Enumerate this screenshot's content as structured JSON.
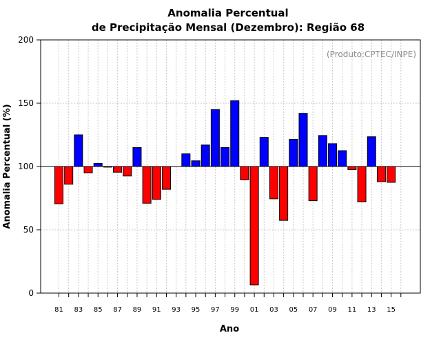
{
  "chart_data": {
    "type": "bar",
    "title_line1": "Anomalia Percentual",
    "title_line2": "de Precipitação Mensal (Dezembro): Região 68",
    "credit": "(Produto:CPTEC/INPE)",
    "xlabel": "Ano",
    "ylabel": "Anomalia Percentual (%)",
    "ylim": [
      0,
      200
    ],
    "yticks": [
      0,
      50,
      100,
      150,
      200
    ],
    "baseline": 100,
    "grid": true,
    "colors": {
      "above": "#0000ff",
      "below": "#ff0000"
    },
    "x_tick_labels": [
      "81",
      "83",
      "85",
      "87",
      "89",
      "91",
      "93",
      "95",
      "97",
      "99",
      "01",
      "03",
      "05",
      "07",
      "09",
      "11",
      "13",
      "15"
    ],
    "categories": [
      "1981",
      "1982",
      "1983",
      "1984",
      "1985",
      "1986",
      "1987",
      "1988",
      "1989",
      "1990",
      "1991",
      "1992",
      "1993",
      "1994",
      "1995",
      "1996",
      "1997",
      "1998",
      "1999",
      "2000",
      "2001",
      "2002",
      "2003",
      "2004",
      "2005",
      "2006",
      "2007",
      "2008",
      "2009",
      "2010",
      "2011",
      "2012",
      "2013",
      "2014",
      "2015",
      "2016"
    ],
    "values": [
      70.5,
      86,
      125,
      95,
      102.5,
      99.5,
      95.5,
      92.5,
      115,
      71,
      74,
      82,
      100,
      110,
      104.5,
      117,
      145,
      115,
      152,
      89.5,
      6.5,
      123,
      74.5,
      57.5,
      121.5,
      142,
      73,
      124.5,
      118,
      112.5,
      97.5,
      72,
      123.5,
      88,
      87.5,
      100
    ]
  }
}
